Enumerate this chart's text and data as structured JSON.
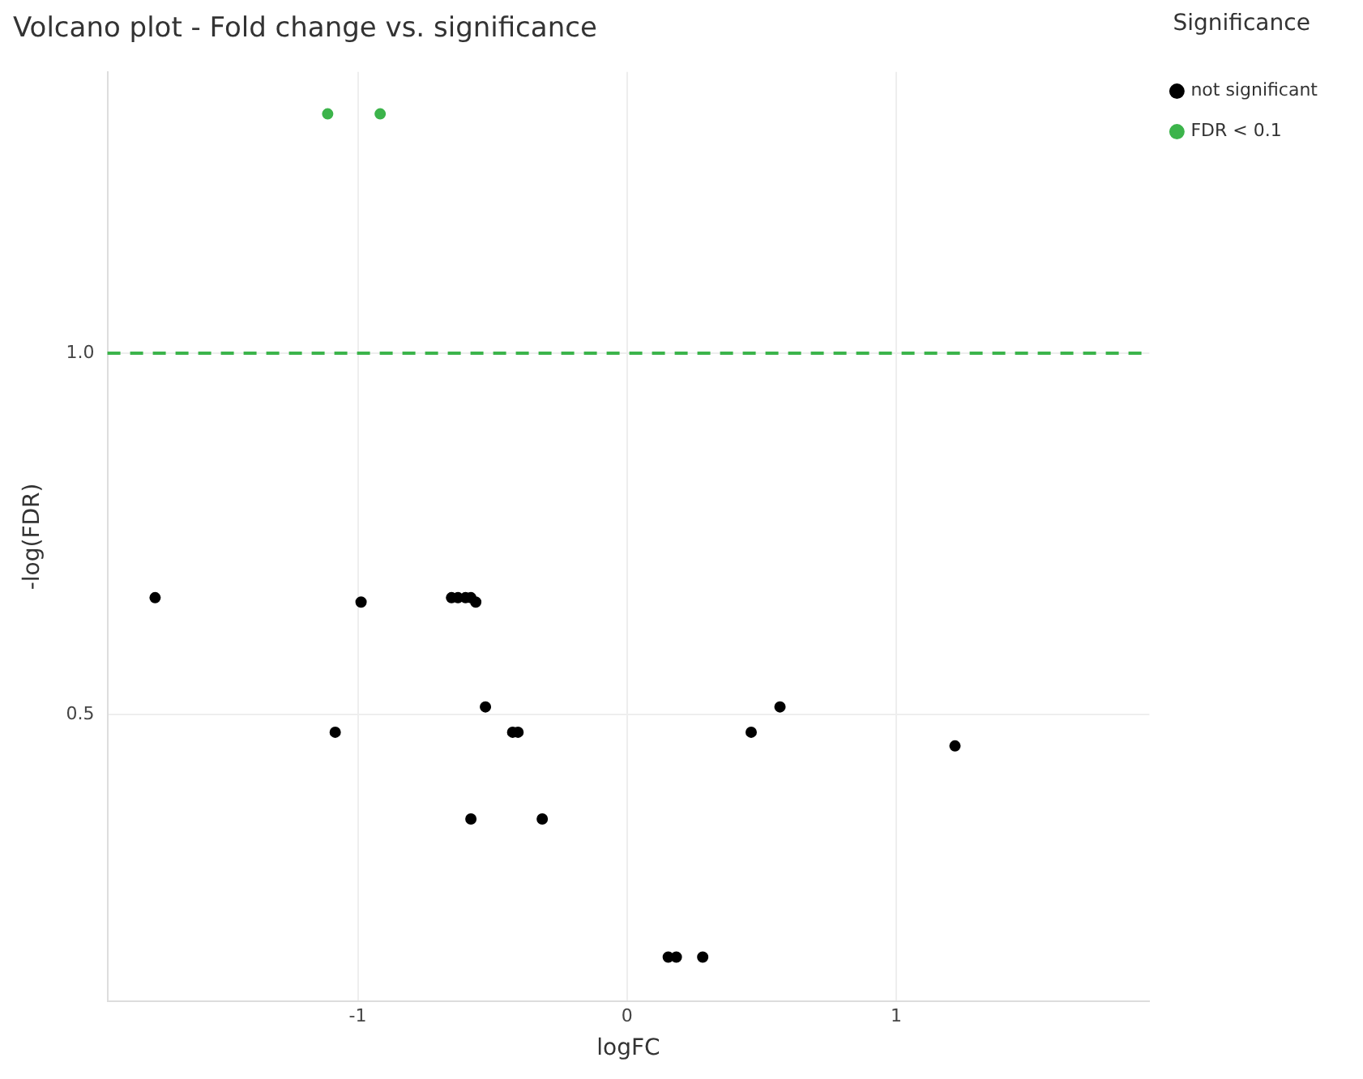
{
  "chart_data": {
    "type": "scatter",
    "title": "Volcano plot - Fold change vs. significance",
    "xlabel": "logFC",
    "ylabel": "-log(FDR)",
    "legend_title": "Significance",
    "series": [
      {
        "name": "not significant",
        "color": "#000000",
        "x": [
          -1.753,
          -0.988,
          -0.652,
          -0.628,
          -0.6,
          -0.58,
          -0.562,
          -0.526,
          -1.084,
          -0.425,
          -0.405,
          -0.58,
          -0.315,
          0.568,
          0.461,
          1.218,
          0.153,
          0.183,
          0.281
        ],
        "values": [
          0.662,
          0.656,
          0.662,
          0.662,
          0.662,
          0.662,
          0.656,
          0.511,
          0.476,
          0.476,
          0.476,
          0.356,
          0.356,
          0.511,
          0.476,
          0.457,
          0.165,
          0.165,
          0.165
        ]
      },
      {
        "name": "FDR < 0.1",
        "color": "#3cb44b",
        "x": [
          -1.112,
          -0.917
        ],
        "values": [
          1.331,
          1.331
        ]
      }
    ],
    "xlim": [
      -1.93,
      1.94
    ],
    "ylim": [
      0.104,
      1.389
    ],
    "xticks": [
      -1,
      0,
      1
    ],
    "yticks": [
      0.5,
      {
        "value": 1,
        "label": "1.0"
      }
    ],
    "ref_lines": [
      {
        "axis": "y",
        "value": 1,
        "color": "#3cb44b",
        "line_style": "dashed"
      }
    ],
    "grid": true,
    "legend": "top right",
    "marker": "circle"
  }
}
